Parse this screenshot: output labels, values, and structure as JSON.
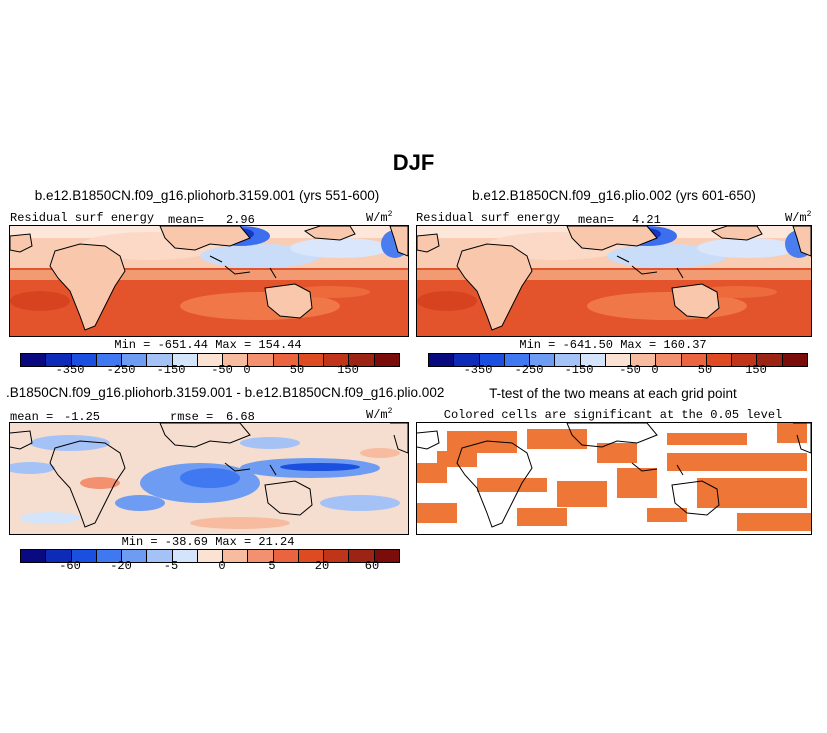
{
  "figure": {
    "title": "DJF"
  },
  "panels": [
    {
      "title": "b.e12.B1850CN.f09_g16.pliohorb.3159.001 (yrs 551-600)",
      "variable": "Residual surf energy",
      "mean_label": "mean=",
      "mean_value": "2.96",
      "units": "W/m",
      "units_exp": "2",
      "min_max": "Min = -651.44 Max = 154.44"
    },
    {
      "title": "b.e12.B1850CN.f09_g16.plio.002 (yrs 601-650)",
      "variable": "Residual surf energy",
      "mean_label": "mean=",
      "mean_value": "4.21",
      "units": "W/m",
      "units_exp": "2",
      "min_max": "Min = -641.50 Max = 160.37"
    },
    {
      "title": ".B1850CN.f09_g16.pliohorb.3159.001 - b.e12.B1850CN.f09_g16.plio.002",
      "mean_label": "mean =",
      "mean_value": "-1.25",
      "rmse_label": "rmse =",
      "rmse_value": "6.68",
      "units": "W/m",
      "units_exp": "2",
      "min_max": "Min = -38.69 Max = 21.24"
    },
    {
      "title": "T-test of the two means at each grid point",
      "subtitle": "Colored cells are significant at the 0.05 level"
    }
  ],
  "chart_data": [
    {
      "type": "heatmap",
      "name": "model-climatology-colorbar",
      "tick_labels": [
        "-350",
        "-250",
        "-150",
        "-50",
        "0",
        "50",
        "150"
      ],
      "colors": [
        "#0a0a80",
        "#0d2bb8",
        "#1a4fe0",
        "#3f78f0",
        "#6e9cf2",
        "#a4c2f5",
        "#d4e4fa",
        "#fbe2d2",
        "#f7bca0",
        "#f29070",
        "#ea6440",
        "#de4a22",
        "#c0351a",
        "#9c2414",
        "#7a0c0c"
      ]
    },
    {
      "type": "heatmap",
      "name": "difference-colorbar",
      "tick_labels": [
        "-60",
        "-20",
        "-5",
        "0",
        "5",
        "20",
        "60"
      ],
      "colors": [
        "#0a0a80",
        "#0d2bb8",
        "#1a4fe0",
        "#3f78f0",
        "#6e9cf2",
        "#a4c2f5",
        "#d4e4fa",
        "#fbe2d2",
        "#f7bca0",
        "#f29070",
        "#ea6440",
        "#de4a22",
        "#c0351a",
        "#9c2414",
        "#7a0c0c"
      ]
    }
  ]
}
